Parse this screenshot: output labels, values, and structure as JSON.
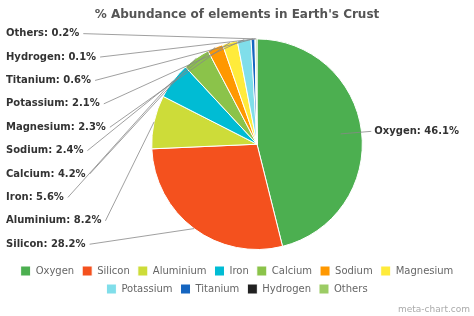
{
  "chart_data": {
    "type": "pie",
    "title": "% Abundance of elements in Earth's Crust",
    "categories": [
      "Oxygen",
      "Silicon",
      "Aluminium",
      "Iron",
      "Calcium",
      "Sodium",
      "Magnesium",
      "Potassium",
      "Titanium",
      "Hydrogen",
      "Others"
    ],
    "values": [
      46.1,
      28.2,
      8.2,
      5.6,
      4.2,
      2.4,
      2.3,
      2.1,
      0.6,
      0.1,
      0.2
    ],
    "value_labels": [
      "Oxygen: 46.1%",
      "Silicon: 28.2%",
      "Aluminium: 8.2%",
      "Iron: 5.6%",
      "Calcium: 4.2%",
      "Sodium: 2.4%",
      "Magnesium: 2.3%",
      "Potassium: 2.1%",
      "Titanium: 0.6%",
      "Hydrogen: 0.1%",
      "Others: 0.2%"
    ],
    "colors": [
      "#4caf50",
      "#f4511e",
      "#cddc39",
      "#00bcd4",
      "#8bc34a",
      "#ff9800",
      "#ffeb3b",
      "#80deea",
      "#1565c0",
      "#212121",
      "#9ccc65"
    ],
    "data_labels": true,
    "legend": "bottom",
    "annotations": [
      "meta-chart.com"
    ]
  }
}
